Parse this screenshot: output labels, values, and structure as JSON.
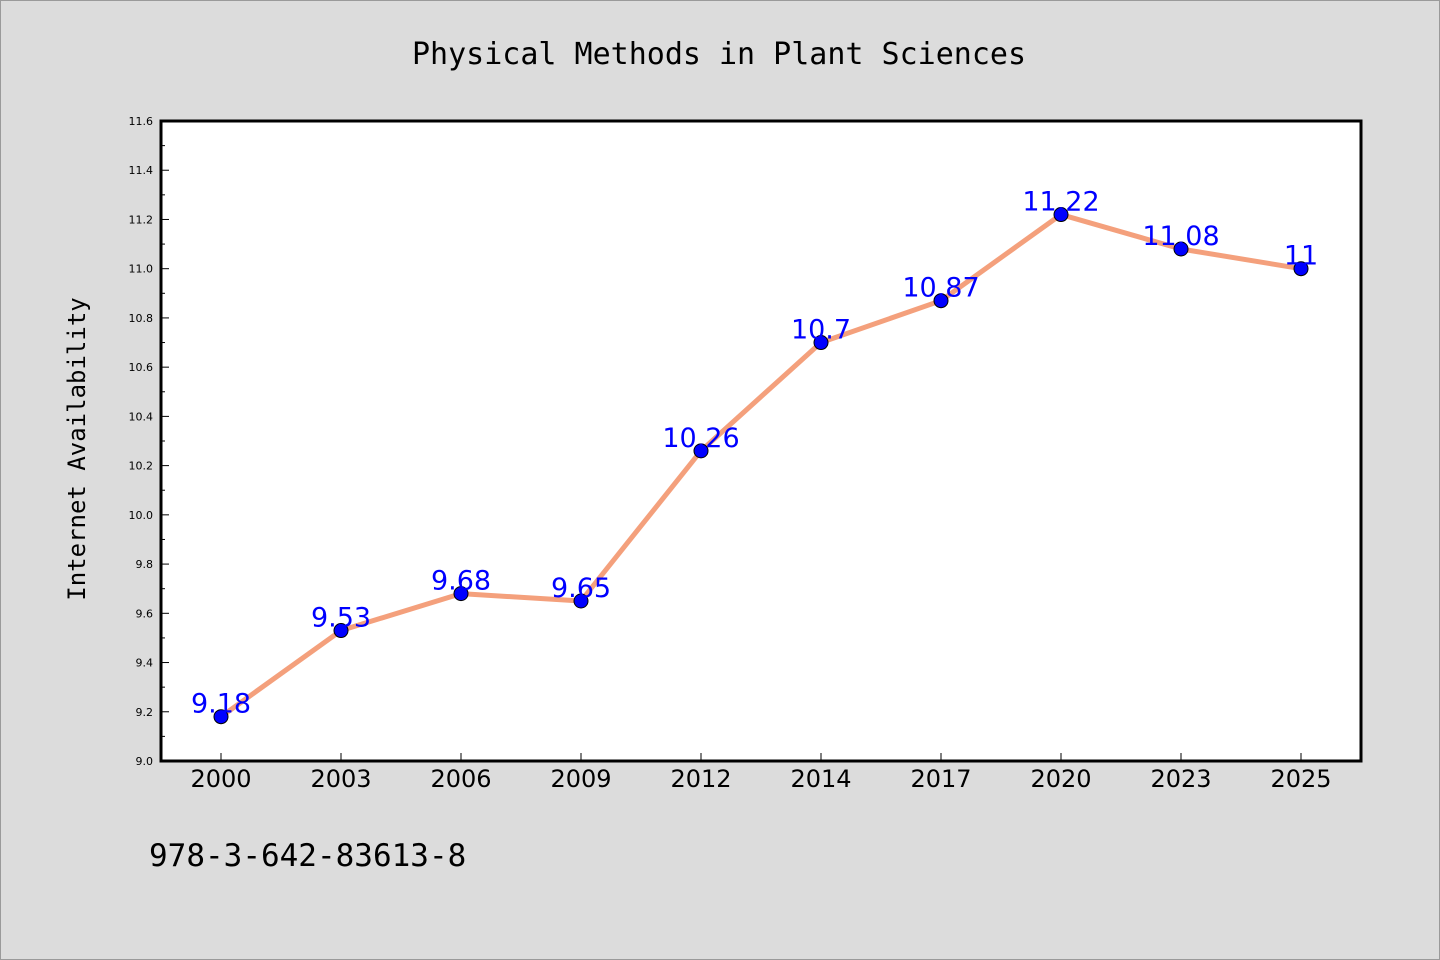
{
  "chart_data": {
    "type": "line",
    "title": "Physical Methods in Plant Sciences",
    "xlabel": "",
    "ylabel": "Internet Availability",
    "categories": [
      "2000",
      "2003",
      "2006",
      "2009",
      "2012",
      "2014",
      "2017",
      "2020",
      "2023",
      "2025"
    ],
    "series": [
      {
        "values": [
          9.18,
          9.53,
          9.68,
          9.65,
          10.26,
          10.7,
          10.87,
          11.22,
          11.08,
          11
        ],
        "data_labels": [
          "9.18",
          "9.53",
          "9.68",
          "9.65",
          "10.26",
          "10.7",
          "10.87",
          "11.22",
          "11.08",
          "11"
        ],
        "line_color": "#f4a07c",
        "marker_color": "#0000ff",
        "label_color": "#0000ff"
      }
    ],
    "ylim": [
      9.0,
      11.6
    ],
    "yticks": [
      "9.0",
      "9.2",
      "9.4",
      "9.6",
      "9.8",
      "10.0",
      "10.2",
      "10.4",
      "10.6",
      "10.8",
      "11.0",
      "11.2",
      "11.4",
      "11.6"
    ],
    "grid": false,
    "legend": "none"
  },
  "footnote": "978-3-642-83613-8",
  "colors": {
    "figure_background": "#dcdcdc",
    "plot_background": "#ffffff",
    "axes": "#000000"
  }
}
